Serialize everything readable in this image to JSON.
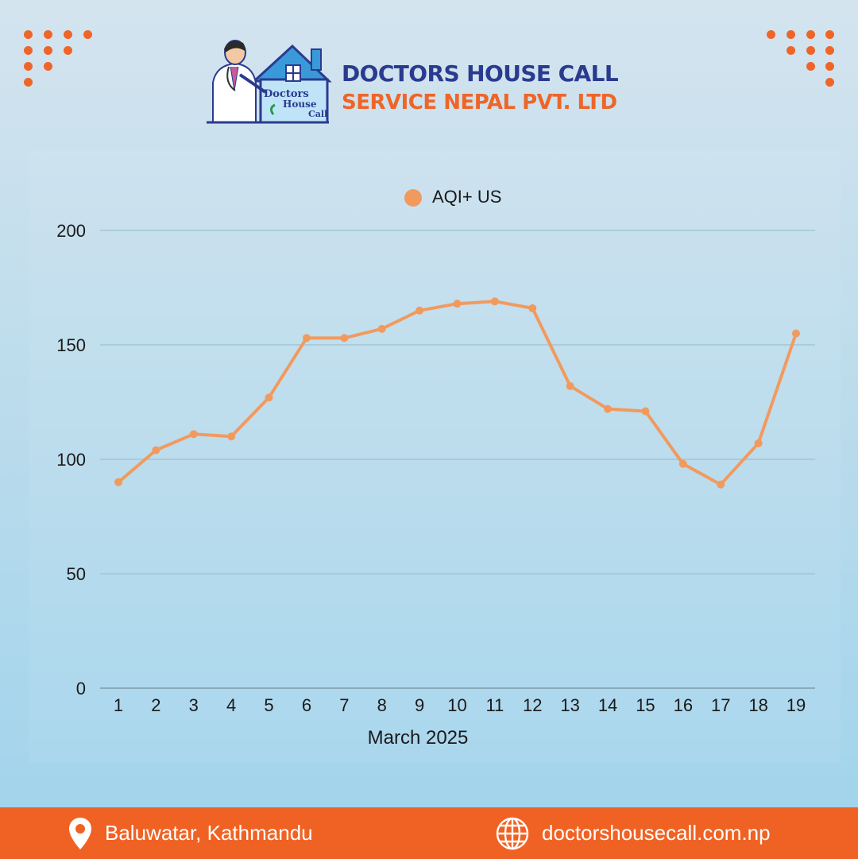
{
  "brand": {
    "line1": "DOCTORS HOUSE CALL",
    "line2": "SERVICE NEPAL PVT. LTD",
    "emblem_text": [
      "Doctors",
      "House",
      "Call"
    ],
    "colors": {
      "navy": "#2a3b8f",
      "orange": "#ef6528",
      "footer": "#f06223",
      "roof": "#3a9ad9"
    }
  },
  "footer": {
    "location": "Baluwatar, Kathmandu",
    "website": "doctorshousecall.com.np",
    "location_icon": "map-pin-icon",
    "website_icon": "globe-icon"
  },
  "chart_data": {
    "type": "line",
    "x": [
      "1",
      "2",
      "3",
      "4",
      "5",
      "6",
      "7",
      "8",
      "9",
      "10",
      "11",
      "12",
      "13",
      "14",
      "15",
      "16",
      "17",
      "18",
      "19"
    ],
    "series": [
      {
        "name": "AQI+ US",
        "color": "#f29a5e",
        "values": [
          90,
          104,
          111,
          110,
          127,
          153,
          153,
          157,
          165,
          168,
          169,
          166,
          132,
          122,
          121,
          98,
          89,
          107,
          155
        ]
      }
    ],
    "xlabel": "March 2025",
    "ylabel": "",
    "ylim": [
      0,
      200
    ],
    "yticks": [
      0,
      50,
      100,
      150,
      200
    ],
    "grid": true,
    "legend": "top-center"
  }
}
